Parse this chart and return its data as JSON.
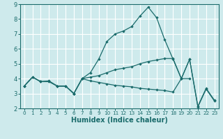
{
  "xlabel": "Humidex (Indice chaleur)",
  "background_color": "#ceeaec",
  "line_color": "#1a6b6b",
  "grid_color": "#ffffff",
  "xlim": [
    -0.5,
    23.5
  ],
  "ylim": [
    2,
    9
  ],
  "yticks": [
    2,
    3,
    4,
    5,
    6,
    7,
    8,
    9
  ],
  "xticks": [
    0,
    1,
    2,
    3,
    4,
    5,
    6,
    7,
    8,
    9,
    10,
    11,
    12,
    13,
    14,
    15,
    16,
    17,
    18,
    19,
    20,
    21,
    22,
    23
  ],
  "line1_x": [
    0,
    1,
    2,
    3,
    4,
    5,
    6,
    7,
    8,
    9,
    10,
    11,
    12,
    13,
    14,
    15,
    16,
    17,
    18,
    19,
    20,
    21,
    22,
    23
  ],
  "line1_y": [
    3.5,
    4.1,
    3.8,
    3.8,
    3.5,
    3.5,
    3.0,
    4.0,
    4.4,
    5.3,
    6.5,
    7.0,
    7.2,
    7.5,
    8.2,
    8.8,
    8.1,
    6.6,
    5.3,
    4.0,
    5.3,
    2.1,
    3.3,
    2.5
  ],
  "line2_x": [
    0,
    1,
    2,
    3,
    4,
    5,
    6,
    7,
    8,
    9,
    10,
    11,
    12,
    13,
    14,
    15,
    16,
    17,
    18,
    19,
    20,
    21,
    22,
    23
  ],
  "line2_y": [
    3.5,
    4.1,
    3.8,
    3.85,
    3.5,
    3.5,
    3.0,
    4.0,
    4.1,
    4.2,
    4.4,
    4.6,
    4.7,
    4.8,
    5.0,
    5.15,
    5.25,
    5.35,
    5.35,
    4.0,
    5.3,
    2.15,
    3.35,
    2.55
  ],
  "line3_x": [
    0,
    1,
    2,
    3,
    4,
    5,
    6,
    7,
    8,
    9,
    10,
    11,
    12,
    13,
    14,
    15,
    16,
    17,
    18,
    19,
    20
  ],
  "line3_y": [
    3.5,
    4.1,
    3.8,
    3.8,
    3.5,
    3.5,
    3.0,
    4.0,
    3.85,
    3.75,
    3.65,
    3.55,
    3.5,
    3.45,
    3.35,
    3.3,
    3.25,
    3.2,
    3.1,
    4.0,
    4.0
  ],
  "line4_x": [
    0,
    19,
    20
  ],
  "line4_y": [
    3.5,
    4.0,
    5.3
  ],
  "line5_x": [
    0,
    20
  ],
  "line5_y": [
    3.5,
    4.0
  ]
}
